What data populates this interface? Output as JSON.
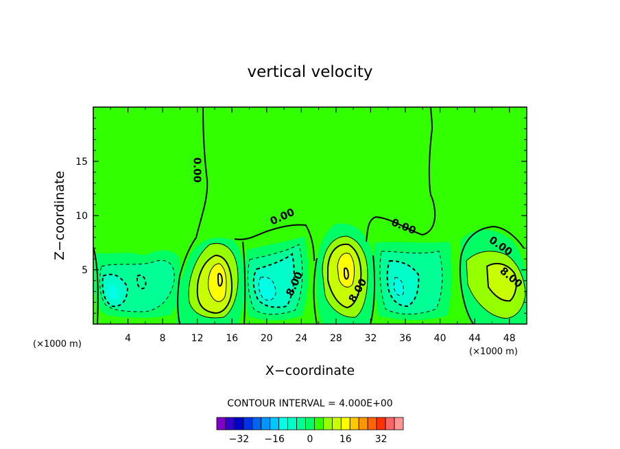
{
  "chart_data": {
    "type": "contour",
    "title": "vertical velocity",
    "xlabel": "X−coordinate",
    "ylabel": "Z−coordinate",
    "x_unit_left": "(×1000 m)",
    "x_unit_right": "(×1000 m)",
    "xlim": [
      0,
      50
    ],
    "ylim": [
      0,
      20
    ],
    "xticks": [
      4,
      8,
      12,
      16,
      20,
      24,
      28,
      32,
      36,
      40,
      44,
      48
    ],
    "yticks": [
      5,
      10,
      15
    ],
    "contour_interval_text": "CONTOUR INTERVAL = 4.000E+00",
    "contour_labels": [
      {
        "text": "0.00",
        "x": 12.0,
        "z": 14.2,
        "rotate": 90
      },
      {
        "text": "0.00",
        "x": 21.8,
        "z": 9.9,
        "rotate": -25
      },
      {
        "text": "0.00",
        "x": 35.8,
        "z": 9.0,
        "rotate": 22
      },
      {
        "text": "0.00",
        "x": 47.0,
        "z": 7.2,
        "rotate": 35
      },
      {
        "text": "8.00",
        "x": 23.2,
        "z": 3.7,
        "rotate": -65
      },
      {
        "text": "8.00",
        "x": 30.5,
        "z": 3.1,
        "rotate": -60
      },
      {
        "text": "8.00",
        "x": 48.2,
        "z": 4.3,
        "rotate": 40
      }
    ],
    "colorbar": {
      "tick_labels": [
        "−32",
        "−16",
        "0",
        "16",
        "32"
      ],
      "tick_values": [
        -32,
        -16,
        0,
        16,
        32
      ],
      "colors": [
        "#7f00c8",
        "#3200c8",
        "#0000c8",
        "#0032e6",
        "#0064f0",
        "#0096ff",
        "#00c8ff",
        "#00ffe6",
        "#00ffc8",
        "#00ff96",
        "#00ff64",
        "#32ff00",
        "#96ff00",
        "#c8ff00",
        "#ffff00",
        "#ffc800",
        "#ff9600",
        "#ff6400",
        "#ff3200",
        "#ff6464",
        "#ff9696"
      ]
    },
    "background_color": "#32ff00",
    "cells": [
      {
        "sign": "neg",
        "x": 3.5,
        "z": 3.8,
        "peak": -12
      },
      {
        "sign": "pos",
        "x": 14.5,
        "z": 4.0,
        "peak": 20
      },
      {
        "sign": "neg",
        "x": 20.5,
        "z": 3.8,
        "peak": -16
      },
      {
        "sign": "pos",
        "x": 29.2,
        "z": 4.6,
        "peak": 20
      },
      {
        "sign": "neg",
        "x": 35.5,
        "z": 3.8,
        "peak": -16
      },
      {
        "sign": "pos",
        "x": 46.0,
        "z": 4.2,
        "peak": 12
      }
    ]
  }
}
